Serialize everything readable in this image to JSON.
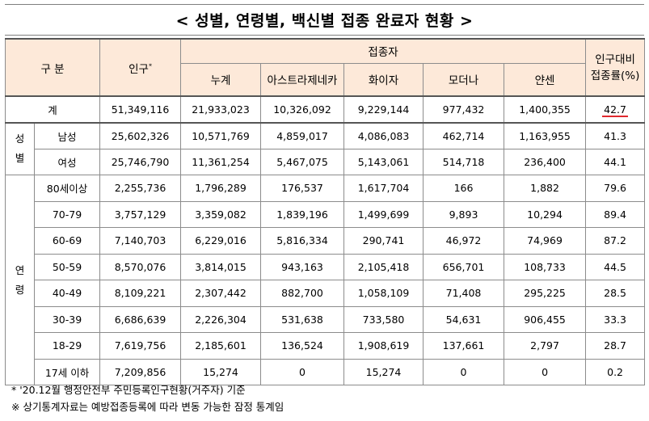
{
  "title": "< 성별, 연령별, 백신별 접종 완료자 현황 >",
  "header": {
    "category": "구 분",
    "population": "인구",
    "population_mark": "*",
    "vaccinated": "접종자",
    "total": "누계",
    "astrazeneca": "아스트라제네카",
    "pfizer": "화이자",
    "moderna": "모더나",
    "janssen": "얀센",
    "rate_line1": "인구대비",
    "rate_line2": "접종률(%)"
  },
  "total_row": {
    "label": "계",
    "population": "51,349,116",
    "total": "21,933,023",
    "astrazeneca": "10,326,092",
    "pfizer": "9,229,144",
    "moderna": "977,432",
    "janssen": "1,400,355",
    "rate": "42.7"
  },
  "gender_group": {
    "label_1": "성",
    "label_2": "별"
  },
  "gender_rows": [
    {
      "label": "남성",
      "population": "25,602,326",
      "total": "10,571,769",
      "astrazeneca": "4,859,017",
      "pfizer": "4,086,083",
      "moderna": "462,714",
      "janssen": "1,163,955",
      "rate": "41.3"
    },
    {
      "label": "여성",
      "population": "25,746,790",
      "total": "11,361,254",
      "astrazeneca": "5,467,075",
      "pfizer": "5,143,061",
      "moderna": "514,718",
      "janssen": "236,400",
      "rate": "44.1"
    }
  ],
  "age_group": {
    "label_1": "연",
    "label_2": "령"
  },
  "age_rows": [
    {
      "label": "80세이상",
      "population": "2,255,736",
      "total": "1,796,289",
      "astrazeneca": "176,537",
      "pfizer": "1,617,704",
      "moderna": "166",
      "janssen": "1,882",
      "rate": "79.6"
    },
    {
      "label": "70-79",
      "population": "3,757,129",
      "total": "3,359,082",
      "astrazeneca": "1,839,196",
      "pfizer": "1,499,699",
      "moderna": "9,893",
      "janssen": "10,294",
      "rate": "89.4"
    },
    {
      "label": "60-69",
      "population": "7,140,703",
      "total": "6,229,016",
      "astrazeneca": "5,816,334",
      "pfizer": "290,741",
      "moderna": "46,972",
      "janssen": "74,969",
      "rate": "87.2"
    },
    {
      "label": "50-59",
      "population": "8,570,076",
      "total": "3,814,015",
      "astrazeneca": "943,163",
      "pfizer": "2,105,418",
      "moderna": "656,701",
      "janssen": "108,733",
      "rate": "44.5"
    },
    {
      "label": "40-49",
      "population": "8,109,221",
      "total": "2,307,442",
      "astrazeneca": "882,700",
      "pfizer": "1,058,109",
      "moderna": "71,408",
      "janssen": "295,225",
      "rate": "28.5"
    },
    {
      "label": "30-39",
      "population": "6,686,639",
      "total": "2,226,304",
      "astrazeneca": "531,638",
      "pfizer": "733,580",
      "moderna": "54,631",
      "janssen": "906,455",
      "rate": "33.3"
    },
    {
      "label": "18-29",
      "population": "7,619,756",
      "total": "2,185,601",
      "astrazeneca": "136,524",
      "pfizer": "1,908,619",
      "moderna": "137,661",
      "janssen": "2,797",
      "rate": "28.7"
    },
    {
      "label": "17세 이하",
      "population": "7,209,856",
      "total": "15,274",
      "astrazeneca": "0",
      "pfizer": "15,274",
      "moderna": "0",
      "janssen": "0",
      "rate": "0.2"
    }
  ],
  "footnotes": {
    "note1": "* '20.12월 행정안전부 주민등록인구현황(거주자) 기준",
    "note2": "※ 상기통계자료는 예방접종등록에 따라 변동 가능한 잠정 통계임"
  },
  "colors": {
    "header_bg": "#fde9d9",
    "highlight_underline": "#e0282e"
  }
}
